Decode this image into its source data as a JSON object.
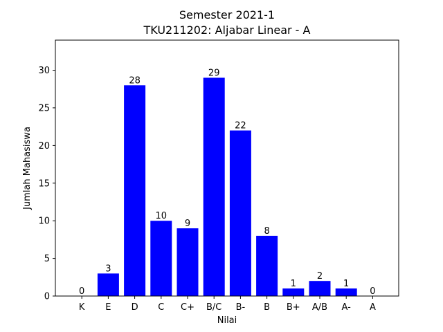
{
  "chart_data": {
    "type": "bar",
    "title_line1": "Semester 2021-1",
    "title_line2": "TKU211202: Aljabar Linear - A",
    "xlabel": "Nilai",
    "ylabel": "Jumlah Mahasiswa",
    "categories": [
      "K",
      "E",
      "D",
      "C",
      "C+",
      "B/C",
      "B-",
      "B",
      "B+",
      "A/B",
      "A-",
      "A"
    ],
    "values": [
      0,
      3,
      28,
      10,
      9,
      29,
      22,
      8,
      1,
      2,
      1,
      0
    ],
    "ylim": [
      0,
      34
    ],
    "yticks": [
      0,
      5,
      10,
      15,
      20,
      25,
      30
    ],
    "grid": false,
    "bar_color": "#0000ff"
  }
}
